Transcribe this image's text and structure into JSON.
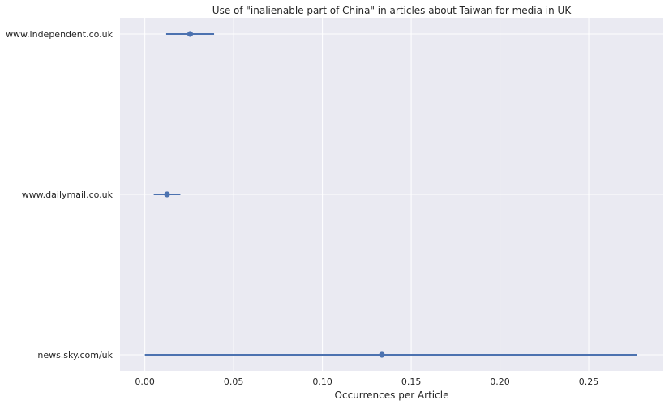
{
  "chart_data": {
    "type": "scatter",
    "title": "Use of \"inalienable part of China\" in articles about Taiwan for media in UK",
    "xlabel": "Occurrences per Article",
    "ylabel": "",
    "xlim": [
      -0.014,
      0.292
    ],
    "x_ticks": [
      0.0,
      0.05,
      0.1,
      0.15,
      0.2,
      0.25
    ],
    "x_tick_labels": [
      "0.00",
      "0.05",
      "0.10",
      "0.15",
      "0.20",
      "0.25"
    ],
    "grid": true,
    "categories": [
      "www.independent.co.uk",
      "www.dailymail.co.uk",
      "news.sky.com/uk"
    ],
    "points": [
      {
        "category": "www.independent.co.uk",
        "value": 0.0255,
        "ci_low": 0.012,
        "ci_high": 0.039
      },
      {
        "category": "www.dailymail.co.uk",
        "value": 0.0125,
        "ci_low": 0.005,
        "ci_high": 0.02
      },
      {
        "category": "news.sky.com/uk",
        "value": 0.1335,
        "ci_low": 0.0,
        "ci_high": 0.277
      }
    ],
    "colors": {
      "background": "#EAEAF2",
      "grid": "#FFFFFF",
      "marker": "#4C72B0"
    }
  }
}
